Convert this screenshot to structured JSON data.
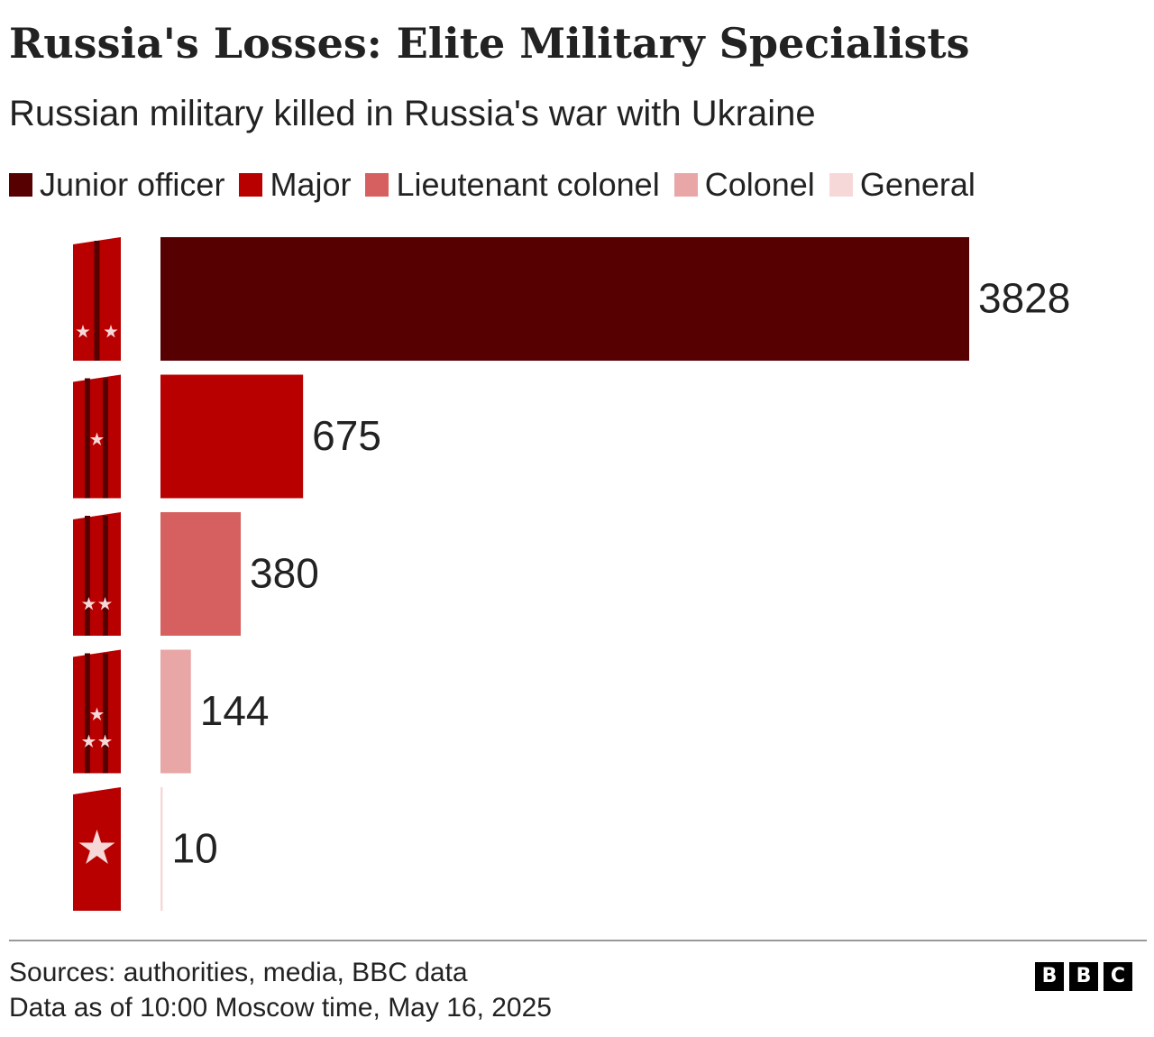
{
  "header": {
    "title": "Russia's Losses: Elite Military Specialists",
    "subtitle": "Russian military killed in Russia's war with Ukraine"
  },
  "legend": [
    {
      "label": "Junior officer",
      "color": "#560002"
    },
    {
      "label": "Major",
      "color": "#b80000"
    },
    {
      "label": "Lieutenant colonel",
      "color": "#d65f5f"
    },
    {
      "label": "Colonel",
      "color": "#e8a6a6"
    },
    {
      "label": "General",
      "color": "#f7d8d8"
    }
  ],
  "chart_data": {
    "type": "bar",
    "orientation": "horizontal",
    "categories": [
      "Junior officer",
      "Major",
      "Lieutenant colonel",
      "Colonel",
      "General"
    ],
    "values": [
      3828,
      675,
      380,
      144,
      10
    ],
    "colors": [
      "#560002",
      "#b80000",
      "#d65f5f",
      "#e8a6a6",
      "#f7d8d8"
    ],
    "value_labels": [
      "3828",
      "675",
      "380",
      "144",
      "10"
    ],
    "xlim": [
      0,
      3828
    ],
    "grid": false,
    "legend_position": "top-left"
  },
  "insignia": [
    {
      "rank": "Junior officer",
      "stripes": 1,
      "star_style": "small-side"
    },
    {
      "rank": "Major",
      "stripes": 2,
      "star_style": "single-center"
    },
    {
      "rank": "Lieutenant colonel",
      "stripes": 2,
      "star_style": "double-bottom"
    },
    {
      "rank": "Colonel",
      "stripes": 2,
      "star_style": "triple"
    },
    {
      "rank": "General",
      "stripes": 0,
      "star_style": "large-center"
    }
  ],
  "footer": {
    "source": "Sources: authorities, media, BBC data",
    "as_of": "Data as of 10:00 Moscow time, May 16, 2025",
    "logo": [
      "B",
      "B",
      "C"
    ]
  }
}
